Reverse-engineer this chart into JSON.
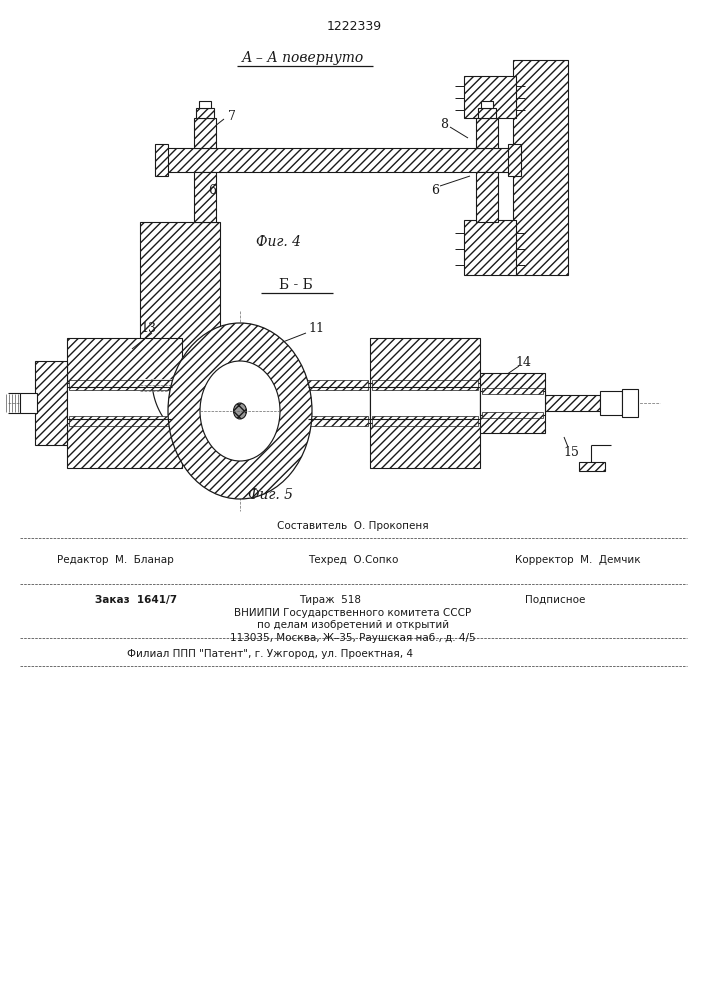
{
  "patent_number": "1222339",
  "fig4_label": "А – А повернуто",
  "fig4_caption": "Фиг. 4",
  "fig5_label": "Б - Б",
  "fig5_caption": "Фиг. 5",
  "bg_color": "#ffffff",
  "lc": "#1a1a1a",
  "footer": {
    "line1c": "Составитель  О. Прокопеня",
    "line2l": "Редактор  М.  Бланар",
    "line2c": "Техред  О.Сопко",
    "line2r": "Корректор  М.  Демчик",
    "line3l": "Заказ  1641/7",
    "line3c": "Тираж  518",
    "line3r": "Подписное",
    "line4a": "ВНИИПИ Государственного комитета СССР",
    "line4b": "по делам изобретений и открытий",
    "line4c": "113035, Москва, Ж–35, Раушская наб., д. 4/5",
    "line5": "Филиал ППП \"Патент\", г. Ужгород, ул. Проектная, 4"
  }
}
